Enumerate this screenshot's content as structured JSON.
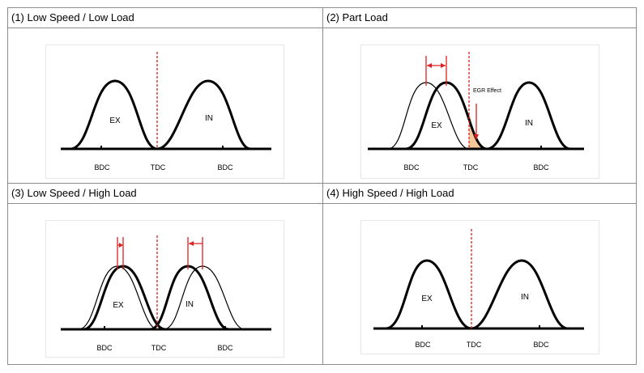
{
  "cells": [
    {
      "title": "(1) Low Speed / Low Load",
      "lobe_ex": "EX",
      "lobe_in": "IN",
      "axis": {
        "left": "BDC",
        "center": "TDC",
        "right": "BDC"
      }
    },
    {
      "title": "(2) Part Load",
      "lobe_ex": "EX",
      "lobe_in": "IN",
      "annotation": "EGR Effect",
      "axis": {
        "left": "BDC",
        "center": "TDC",
        "right": "BDC"
      }
    },
    {
      "title": "(3) Low Speed / High Load",
      "lobe_ex": "EX",
      "lobe_in": "IN",
      "axis": {
        "left": "BDC",
        "center": "TDC",
        "right": "BDC"
      }
    },
    {
      "title": "(4) High Speed / High Load",
      "lobe_ex": "EX",
      "lobe_in": "IN",
      "axis": {
        "left": "BDC",
        "center": "TDC",
        "right": "BDC"
      }
    }
  ],
  "colors": {
    "curve": "#000000",
    "marker": "#e02020",
    "egr_fill": "#f5c89a"
  }
}
